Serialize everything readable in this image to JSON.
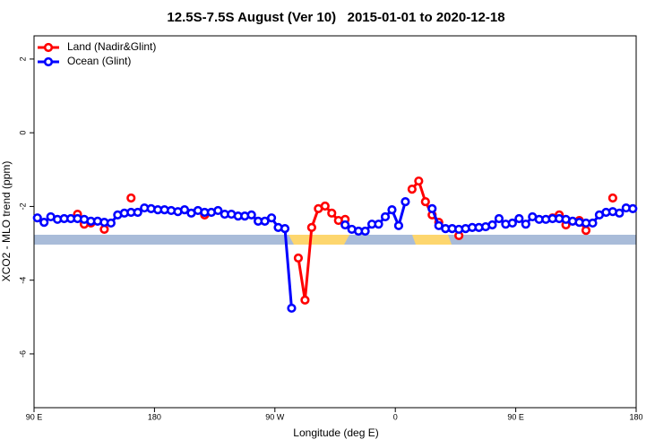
{
  "chart_data": {
    "type": "line",
    "title": "12.5S-7.5S August (Ver 10)   2015-01-01 to 2020-12-18",
    "xlabel": "Longitude (deg E)",
    "ylabel": "XCO2 - MLO trend (ppm)",
    "x": [
      92.5,
      97.5,
      102.5,
      107.5,
      112.5,
      117.5,
      122.5,
      127.5,
      132.5,
      137.5,
      142.5,
      147.5,
      152.5,
      157.5,
      162.5,
      167.5,
      172.5,
      177.5,
      182.5,
      187.5,
      192.5,
      197.5,
      202.5,
      207.5,
      212.5,
      217.5,
      222.5,
      227.5,
      232.5,
      237.5,
      242.5,
      247.5,
      252.5,
      257.5,
      262.5,
      267.5,
      272.5,
      277.5,
      282.5,
      287.5,
      292.5,
      297.5,
      302.5,
      307.5,
      312.5,
      317.5,
      322.5,
      327.5,
      332.5,
      337.5,
      342.5,
      347.5,
      352.5,
      357.5,
      362.5,
      367.5,
      372.5,
      377.5,
      382.5,
      387.5,
      392.5,
      397.5,
      402.5,
      407.5,
      412.5,
      417.5,
      422.5,
      427.5,
      432.5,
      437.5,
      442.5,
      447.5,
      452.5,
      457.5,
      462.5,
      467.5,
      472.5,
      477.5,
      482.5,
      487.5,
      492.5,
      497.5,
      502.5,
      507.5,
      512.5,
      517.5,
      522.5,
      527.5,
      532.5,
      537.5
    ],
    "series": [
      {
        "name": "Land (Nadir&Glint)",
        "color": "#ff0000",
        "values": [
          null,
          null,
          null,
          null,
          null,
          null,
          -2.21,
          -2.48,
          -2.45,
          null,
          -2.62,
          null,
          null,
          null,
          -1.77,
          null,
          null,
          null,
          null,
          null,
          null,
          null,
          null,
          null,
          null,
          -2.23,
          null,
          null,
          null,
          null,
          null,
          null,
          null,
          null,
          null,
          null,
          null,
          null,
          null,
          -3.4,
          -4.54,
          -2.57,
          -2.06,
          -1.99,
          -2.18,
          -2.38,
          -2.35,
          null,
          null,
          null,
          null,
          null,
          null,
          null,
          null,
          null,
          -1.53,
          -1.31,
          -1.87,
          -2.23,
          -2.43,
          null,
          null,
          -2.79,
          null,
          null,
          null,
          null,
          null,
          null,
          null,
          null,
          null,
          null,
          null,
          null,
          null,
          -2.31,
          -2.23,
          -2.5,
          null,
          -2.38,
          -2.65,
          null,
          null,
          null,
          -1.77,
          null,
          null,
          null
        ]
      },
      {
        "name": "Ocean (Glint)",
        "color": "#0000ff",
        "values": [
          -2.31,
          -2.43,
          -2.28,
          -2.35,
          -2.33,
          -2.33,
          -2.33,
          -2.35,
          -2.4,
          -2.4,
          -2.43,
          -2.45,
          -2.23,
          -2.18,
          -2.16,
          -2.16,
          -2.04,
          -2.06,
          -2.09,
          -2.09,
          -2.11,
          -2.14,
          -2.09,
          -2.18,
          -2.11,
          -2.16,
          -2.16,
          -2.11,
          -2.21,
          -2.21,
          -2.26,
          -2.26,
          -2.23,
          -2.4,
          -2.4,
          -2.31,
          -2.57,
          -2.6,
          -4.76,
          null,
          null,
          null,
          null,
          null,
          null,
          null,
          -2.5,
          -2.62,
          -2.67,
          -2.67,
          -2.48,
          -2.48,
          -2.28,
          -2.09,
          -2.52,
          -1.87,
          null,
          null,
          null,
          -2.06,
          -2.52,
          -2.6,
          -2.6,
          -2.62,
          -2.6,
          -2.57,
          -2.57,
          -2.55,
          -2.5,
          -2.33,
          -2.48,
          -2.45,
          -2.33,
          -2.48,
          -2.28,
          -2.35,
          -2.35,
          -2.33,
          -2.33,
          -2.35,
          -2.4,
          -2.43,
          -2.45,
          -2.45,
          -2.23,
          -2.16,
          -2.14,
          -2.18,
          -2.04,
          -2.06
        ]
      }
    ],
    "xlim": [
      90,
      540
    ],
    "xticks": [
      {
        "value": 90,
        "label": "90 E"
      },
      {
        "value": 180,
        "label": "180"
      },
      {
        "value": 270,
        "label": "90 W"
      },
      {
        "value": 360,
        "label": "0"
      },
      {
        "value": 450,
        "label": "90 E"
      },
      {
        "value": 540,
        "label": "180"
      }
    ],
    "ylim": [
      -7.46,
      2.63
    ],
    "yticks": [
      -6,
      -4,
      -2,
      0,
      2
    ],
    "legend": "top-left"
  }
}
